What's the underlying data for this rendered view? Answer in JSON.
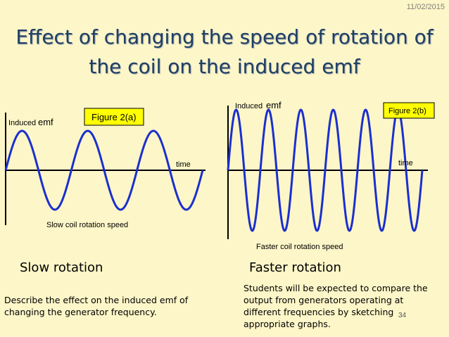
{
  "slide": {
    "date": "11/02/2015",
    "title_line1": "Effect of changing the speed of rotation of",
    "title_line2": "the coil on the induced emf",
    "left_caption": "Slow rotation",
    "right_caption": "Faster rotation",
    "left_note": "Describe the effect on the induced emf of changing the generator frequency.",
    "right_note": "Students will be expected to compare the output from generators operating at different frequencies by sketching appropriate graphs.",
    "page_number": "34"
  },
  "chart_data": [
    {
      "type": "line",
      "figure_label": "Figure 2(a)",
      "ylabel_prefix": "Induced",
      "ylabel_emf": "emf",
      "xlabel": "time",
      "subtitle": "Slow coil rotation speed",
      "cycles": 3,
      "amplitude": 1,
      "phase": "starts at zero, rising"
    },
    {
      "type": "line",
      "figure_label": "Figure 2(b)",
      "ylabel_prefix": "Induced",
      "ylabel_emf": "emf",
      "xlabel": "time",
      "subtitle": "Faster coil rotation speed",
      "cycles": 6,
      "amplitude": 1,
      "phase": "starts at zero, rising"
    }
  ],
  "colors": {
    "wave": "#1b2fcf",
    "figure_box": "#ffff00",
    "title": "#1f3f63",
    "background": "#fdf6c8"
  }
}
